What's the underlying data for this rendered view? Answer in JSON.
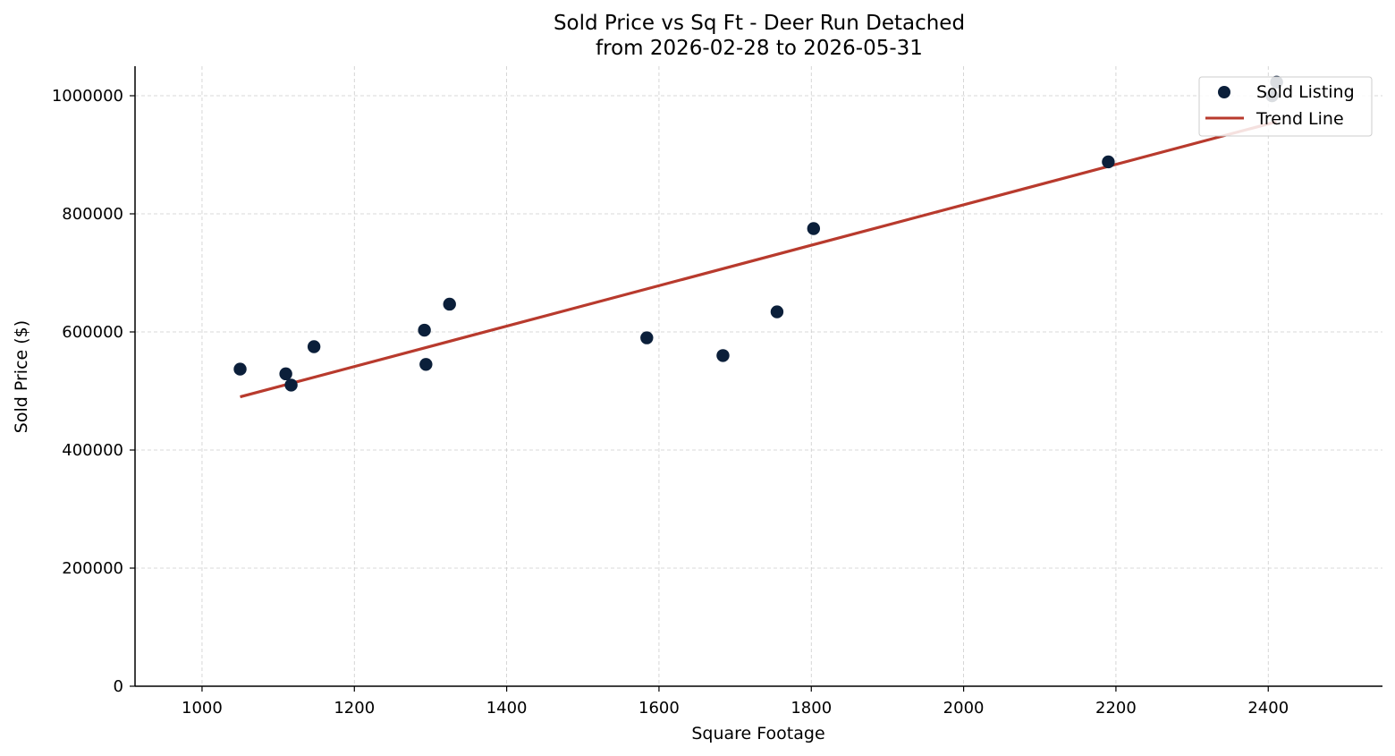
{
  "chart_data": {
    "type": "scatter",
    "title": "Sold Price vs Sq Ft - Deer Run Detached",
    "subtitle": "from 2026-02-28 to 2026-05-31",
    "xlabel": "Square Footage",
    "ylabel": "Sold Price ($)",
    "xlim": [
      912,
      2550
    ],
    "ylim": [
      0,
      1050000
    ],
    "xticks": [
      1000,
      1200,
      1400,
      1600,
      1800,
      2000,
      2200,
      2400
    ],
    "yticks": [
      0,
      200000,
      400000,
      600000,
      800000,
      1000000
    ],
    "grid": true,
    "legend_position": "top-right",
    "series": [
      {
        "name": "Sold Listing",
        "kind": "scatter",
        "color": "#0b1f3a",
        "points": [
          {
            "x": 1050,
            "y": 537000
          },
          {
            "x": 1110,
            "y": 529000
          },
          {
            "x": 1117,
            "y": 510000
          },
          {
            "x": 1147,
            "y": 575000
          },
          {
            "x": 1292,
            "y": 603000
          },
          {
            "x": 1294,
            "y": 545000
          },
          {
            "x": 1325,
            "y": 647000
          },
          {
            "x": 1584,
            "y": 590000
          },
          {
            "x": 1684,
            "y": 560000
          },
          {
            "x": 1755,
            "y": 634000
          },
          {
            "x": 1803,
            "y": 775000
          },
          {
            "x": 2190,
            "y": 888000
          },
          {
            "x": 2405,
            "y": 1000000
          },
          {
            "x": 2411,
            "y": 1023000
          }
        ]
      },
      {
        "name": "Trend Line",
        "kind": "line",
        "color": "#b83a2d",
        "points": [
          {
            "x": 1050,
            "y": 490000
          },
          {
            "x": 2411,
            "y": 956000
          }
        ]
      }
    ]
  }
}
